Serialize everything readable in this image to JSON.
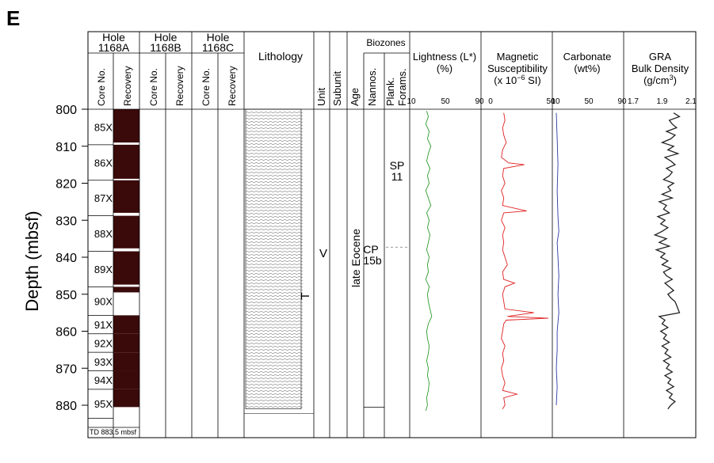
{
  "panel_letter": "E",
  "y_axis": {
    "label": "Depth (mbsf)",
    "min": 800,
    "max": 885,
    "ticks": [
      800,
      810,
      820,
      830,
      840,
      850,
      860,
      870,
      880
    ]
  },
  "holes": [
    {
      "title": "Hole",
      "id": "1168A",
      "col1": "Core No.",
      "col2": "Recovery"
    },
    {
      "title": "Hole",
      "id": "1168B",
      "col1": "Core No.",
      "col2": "Recovery"
    },
    {
      "title": "Hole",
      "id": "1168C",
      "col1": "Core No.",
      "col2": "Recovery"
    }
  ],
  "total_depth_note": "TD 883.5 mbsf",
  "lithology_title": "Lithology",
  "unit_header": "Unit",
  "subunit_header": "Subunit",
  "age_header": "Age",
  "biozones_header": "Biozones",
  "nannos_header": "Nannos.",
  "forams_header_1": "Plank.",
  "forams_header_2": "Forams.",
  "unit_label": "V",
  "subunit_label": "T",
  "age_label": "late Eocene",
  "nanno_zone": {
    "line1": "CP",
    "line2": "15b",
    "boundary_depth": 837.3
  },
  "foram_zone": {
    "line1": "SP",
    "line2": "11"
  },
  "cores": [
    {
      "label": "85X",
      "top": 800.0,
      "bottom": 809.6,
      "recovered_bottom": 809.0
    },
    {
      "label": "86X",
      "top": 809.6,
      "bottom": 819.2,
      "recovered_bottom": 818.8
    },
    {
      "label": "87X",
      "top": 819.2,
      "bottom": 828.8,
      "recovered_bottom": 828.0
    },
    {
      "label": "88X",
      "top": 828.8,
      "bottom": 838.4,
      "recovered_bottom": 837.6
    },
    {
      "label": "89X",
      "top": 838.4,
      "bottom": 848.0,
      "recovered_bottom": 847.4
    },
    {
      "label": "90X",
      "top": 848.0,
      "bottom": 855.7,
      "recovered_bottom": 849.5
    },
    {
      "label": "91X",
      "top": 855.7,
      "bottom": 860.7,
      "recovered_bottom": 860.7
    },
    {
      "label": "92X",
      "top": 860.7,
      "bottom": 865.7,
      "recovered_bottom": 865.7
    },
    {
      "label": "93X",
      "top": 865.7,
      "bottom": 870.7,
      "recovered_bottom": 870.7
    },
    {
      "label": "94X",
      "top": 870.7,
      "bottom": 875.7,
      "recovered_bottom": 875.7
    },
    {
      "label": "95X",
      "top": 875.7,
      "bottom": 883.5,
      "recovered_bottom": 880.5
    }
  ],
  "lithology_interval": {
    "top": 800.0,
    "bottom": 881.0
  },
  "colors": {
    "recovery": "#3a0a0a",
    "lightness": "#2e9b2e",
    "magnetic": "#e02020",
    "carbonate": "#2a3aa0",
    "gra": "#222222",
    "gra_dots": "#7a1a1a"
  },
  "chart_data": [
    {
      "type": "line",
      "title": "Lightness (L*)",
      "unit": "(%)",
      "xlim": [
        10,
        90
      ],
      "xticks": [
        10,
        50,
        90
      ],
      "series": [
        {
          "depth": [
            800.5,
            802,
            804,
            806,
            808,
            810,
            812,
            814,
            816,
            818,
            820,
            822,
            824,
            826,
            828,
            830,
            832,
            834,
            836,
            838,
            840,
            842,
            844,
            846,
            848,
            850,
            852,
            854,
            856,
            858,
            860,
            862,
            864,
            866,
            868,
            870,
            872,
            874,
            876,
            878,
            880,
            881.5
          ],
          "values": [
            28,
            30,
            27,
            31,
            29,
            33,
            30,
            28,
            32,
            29,
            31,
            27,
            30,
            33,
            28,
            31,
            29,
            32,
            30,
            28,
            31,
            29,
            30,
            27,
            31,
            29,
            30,
            32,
            34,
            30,
            28,
            29,
            31,
            30,
            28,
            30,
            29,
            31,
            30,
            28,
            29,
            27
          ]
        }
      ]
    },
    {
      "type": "line",
      "title": "Magnetic Susceptibility",
      "unit": "(x 10⁻⁶ SI)",
      "xlim": [
        0,
        50
      ],
      "xticks": [
        0,
        50
      ],
      "series": [
        {
          "depth": [
            801,
            803,
            805,
            807,
            809,
            811,
            813,
            814.5,
            815,
            816,
            818,
            820,
            822,
            824,
            826,
            827.5,
            828,
            830,
            832,
            834,
            836,
            838,
            840,
            842,
            844,
            846,
            847,
            848,
            850,
            852,
            854,
            855,
            856,
            856.5,
            857,
            858,
            860,
            862,
            864,
            866,
            868,
            870,
            872,
            874,
            876,
            877,
            878,
            880,
            881
          ],
          "values": [
            11,
            12,
            10,
            11,
            13,
            10,
            9,
            15,
            28,
            11,
            10,
            12,
            9,
            11,
            10,
            30,
            11,
            9,
            12,
            10,
            11,
            10,
            12,
            14,
            10,
            11,
            20,
            12,
            10,
            11,
            12,
            36,
            14,
            48,
            13,
            11,
            10,
            9,
            12,
            10,
            11,
            9,
            10,
            12,
            10,
            22,
            11,
            12,
            10
          ]
        }
      ]
    },
    {
      "type": "line",
      "title": "Carbonate",
      "unit": "(wt%)",
      "xlim": [
        10,
        90
      ],
      "xticks": [
        10,
        50,
        90
      ],
      "series": [
        {
          "depth": [
            801,
            808,
            815,
            822,
            829,
            833,
            836,
            840,
            845,
            850,
            855,
            860,
            865,
            870,
            875,
            880
          ],
          "values": [
            11,
            12,
            13,
            12,
            13,
            14,
            12,
            13,
            14,
            13,
            14,
            12,
            12,
            11,
            12,
            11
          ]
        }
      ]
    },
    {
      "type": "line",
      "title": "GRA",
      "subtitle": "Bulk Density",
      "unit": "(g/cm³)",
      "xlim": [
        1.7,
        2.1
      ],
      "xticks": [
        1.7,
        1.9,
        2.1
      ],
      "series": [
        {
          "depth": [
            801,
            802,
            803,
            804,
            805,
            806,
            807,
            808,
            809,
            810,
            811,
            812,
            813,
            814,
            815,
            816,
            817,
            818,
            819,
            820,
            821,
            822,
            823,
            824,
            825,
            826,
            827,
            828,
            829,
            830,
            831,
            832,
            833,
            834,
            835,
            836,
            837,
            838,
            839,
            840,
            841,
            842,
            843,
            844,
            845,
            846,
            847,
            848,
            849,
            850,
            851,
            852,
            853,
            854,
            855,
            856,
            857,
            858,
            859,
            860,
            861,
            862,
            863,
            864,
            865,
            866,
            867,
            868,
            869,
            870,
            871,
            872,
            873,
            874,
            875,
            876,
            877,
            878,
            879,
            880,
            881
          ],
          "values": [
            1.98,
            2.02,
            1.95,
            1.97,
            2.0,
            1.93,
            1.99,
            1.96,
            1.9,
            1.98,
            1.94,
            2.01,
            1.92,
            1.96,
            1.99,
            1.93,
            1.97,
            1.95,
            1.91,
            1.98,
            1.94,
            1.96,
            1.9,
            1.97,
            1.88,
            1.93,
            1.91,
            1.95,
            1.87,
            1.92,
            1.89,
            1.94,
            1.9,
            1.85,
            1.93,
            1.88,
            1.95,
            1.86,
            1.92,
            1.89,
            1.94,
            1.9,
            1.96,
            1.91,
            1.93,
            1.97,
            1.92,
            1.95,
            1.98,
            1.94,
            1.96,
            1.99,
            2.0,
            2.01,
            2.02,
            1.88,
            1.92,
            1.9,
            1.94,
            1.89,
            1.93,
            1.91,
            1.95,
            1.9,
            1.94,
            1.92,
            1.96,
            1.91,
            1.95,
            1.93,
            1.97,
            1.92,
            1.96,
            1.94,
            1.98,
            1.93,
            1.97,
            1.95,
            1.99,
            1.96,
            1.94
          ]
        }
      ]
    }
  ],
  "headers": {
    "lightness": [
      "Lightness (L*)",
      "(%)"
    ],
    "magsus": [
      "Magnetic",
      "Susceptibility",
      "(x 10",
      "−6",
      " SI)"
    ],
    "carbonate": [
      "Carbonate",
      "(wt%)"
    ],
    "gra": [
      "GRA",
      "Bulk Density",
      "(g/cm",
      "3",
      ")"
    ]
  }
}
